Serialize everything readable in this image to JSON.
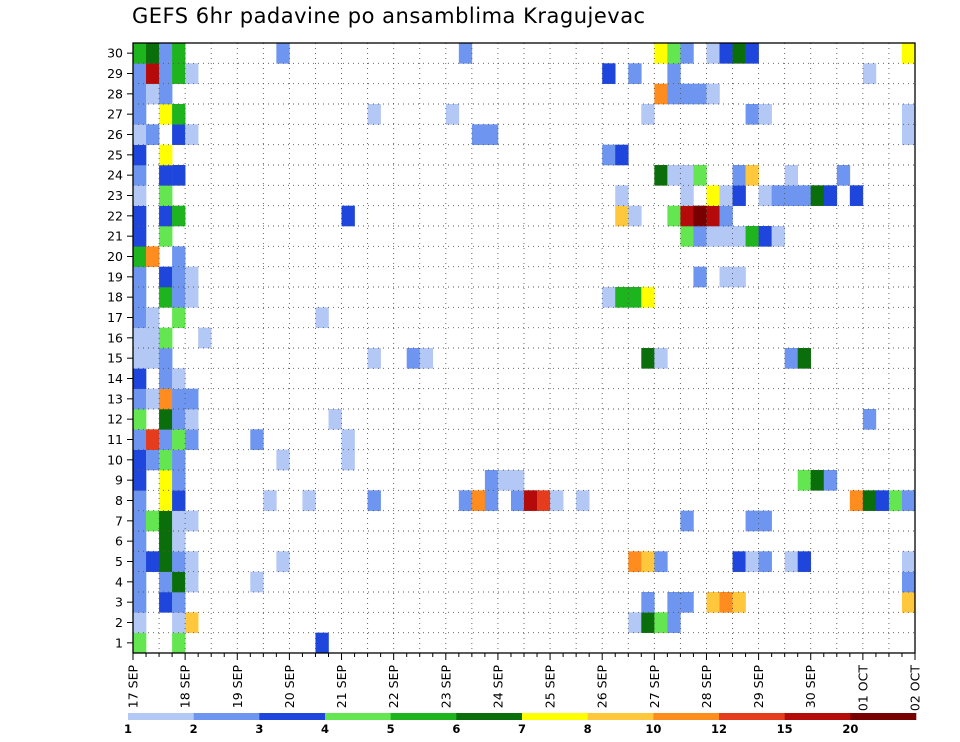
{
  "chart_data": {
    "type": "heatmap",
    "title": "GEFS 6hr padavine po ansamblima Kragujevac",
    "x_tick_labels": [
      "17 SEP",
      "18 SEP",
      "19 SEP",
      "20 SEP",
      "21 SEP",
      "22 SEP",
      "23 SEP",
      "24 SEP",
      "25 SEP",
      "26 SEP",
      "27 SEP",
      "28 SEP",
      "29 SEP",
      "30 SEP",
      "01 OCT",
      "02 OCT"
    ],
    "y_tick_labels": [
      "1",
      "2",
      "3",
      "4",
      "5",
      "6",
      "7",
      "8",
      "9",
      "10",
      "11",
      "12",
      "13",
      "14",
      "15",
      "16",
      "17",
      "18",
      "19",
      "20",
      "21",
      "22",
      "23",
      "24",
      "25",
      "26",
      "27",
      "28",
      "29",
      "30"
    ],
    "x_range_steps": [
      0,
      60
    ],
    "y_range_members": [
      0.5,
      30.5
    ],
    "steps_per_day": 4,
    "grid": "dotted",
    "legend": {
      "placement": "bottom",
      "thresholds": [
        "1",
        "2",
        "3",
        "4",
        "5",
        "6",
        "7",
        "8",
        "10",
        "12",
        "15",
        "20"
      ],
      "colors": [
        "#b4c8f5",
        "#6e96f0",
        "#1e46dc",
        "#64e650",
        "#1eb41e",
        "#0a6e0a",
        "#ffff00",
        "#ffc83c",
        "#ff8c1e",
        "#e63c1e",
        "#b40a0a",
        "#780000"
      ]
    },
    "cells": [
      [
        1,
        0,
        4
      ],
      [
        1,
        3,
        4
      ],
      [
        1,
        14,
        3
      ],
      [
        2,
        0,
        1
      ],
      [
        2,
        3,
        1
      ],
      [
        2,
        4,
        8
      ],
      [
        2,
        38,
        1
      ],
      [
        2,
        39,
        6
      ],
      [
        2,
        40,
        4
      ],
      [
        2,
        41,
        2
      ],
      [
        3,
        0,
        2
      ],
      [
        3,
        2,
        3
      ],
      [
        3,
        3,
        2
      ],
      [
        3,
        39,
        2
      ],
      [
        3,
        41,
        2
      ],
      [
        3,
        42,
        2
      ],
      [
        3,
        44,
        8
      ],
      [
        3,
        45,
        9
      ],
      [
        3,
        46,
        8
      ],
      [
        3,
        59,
        8
      ],
      [
        4,
        0,
        2
      ],
      [
        4,
        2,
        2
      ],
      [
        4,
        3,
        6
      ],
      [
        4,
        4,
        1
      ],
      [
        4,
        9,
        1
      ],
      [
        4,
        59,
        2
      ],
      [
        5,
        0,
        2
      ],
      [
        5,
        1,
        3
      ],
      [
        5,
        2,
        6
      ],
      [
        5,
        3,
        2
      ],
      [
        5,
        4,
        1
      ],
      [
        5,
        11,
        1
      ],
      [
        5,
        38,
        9
      ],
      [
        5,
        39,
        8
      ],
      [
        5,
        40,
        2
      ],
      [
        5,
        46,
        3
      ],
      [
        5,
        47,
        1
      ],
      [
        5,
        48,
        2
      ],
      [
        5,
        50,
        1
      ],
      [
        5,
        51,
        3
      ],
      [
        5,
        59,
        1
      ],
      [
        6,
        0,
        2
      ],
      [
        6,
        2,
        6
      ],
      [
        6,
        3,
        1
      ],
      [
        7,
        0,
        2
      ],
      [
        7,
        1,
        4
      ],
      [
        7,
        2,
        6
      ],
      [
        7,
        3,
        1
      ],
      [
        7,
        4,
        1
      ],
      [
        7,
        42,
        2
      ],
      [
        7,
        47,
        2
      ],
      [
        7,
        48,
        2
      ],
      [
        8,
        0,
        2
      ],
      [
        8,
        2,
        7
      ],
      [
        8,
        3,
        3
      ],
      [
        8,
        10,
        1
      ],
      [
        8,
        13,
        1
      ],
      [
        8,
        18,
        2
      ],
      [
        8,
        25,
        2
      ],
      [
        8,
        26,
        9
      ],
      [
        8,
        27,
        2
      ],
      [
        8,
        29,
        2
      ],
      [
        8,
        30,
        11
      ],
      [
        8,
        31,
        10
      ],
      [
        8,
        32,
        1
      ],
      [
        8,
        34,
        1
      ],
      [
        8,
        55,
        9
      ],
      [
        8,
        56,
        6
      ],
      [
        8,
        57,
        3
      ],
      [
        8,
        58,
        4
      ],
      [
        8,
        59,
        2
      ],
      [
        9,
        0,
        3
      ],
      [
        9,
        2,
        7
      ],
      [
        9,
        3,
        2
      ],
      [
        9,
        27,
        2
      ],
      [
        9,
        28,
        1
      ],
      [
        9,
        29,
        1
      ],
      [
        9,
        51,
        4
      ],
      [
        9,
        52,
        6
      ],
      [
        9,
        53,
        2
      ],
      [
        10,
        0,
        3
      ],
      [
        10,
        1,
        2
      ],
      [
        10,
        2,
        4
      ],
      [
        10,
        3,
        2
      ],
      [
        10,
        11,
        1
      ],
      [
        10,
        16,
        1
      ],
      [
        11,
        0,
        2
      ],
      [
        11,
        1,
        10
      ],
      [
        11,
        2,
        2
      ],
      [
        11,
        3,
        4
      ],
      [
        11,
        4,
        2
      ],
      [
        11,
        9,
        2
      ],
      [
        11,
        16,
        1
      ],
      [
        12,
        0,
        4
      ],
      [
        12,
        2,
        6
      ],
      [
        12,
        3,
        2
      ],
      [
        12,
        4,
        1
      ],
      [
        12,
        15,
        1
      ],
      [
        12,
        56,
        2
      ],
      [
        13,
        0,
        2
      ],
      [
        13,
        1,
        1
      ],
      [
        13,
        2,
        9
      ],
      [
        13,
        3,
        2
      ],
      [
        13,
        4,
        2
      ],
      [
        14,
        0,
        3
      ],
      [
        14,
        2,
        2
      ],
      [
        14,
        3,
        1
      ],
      [
        15,
        0,
        1
      ],
      [
        15,
        1,
        1
      ],
      [
        15,
        2,
        2
      ],
      [
        15,
        18,
        1
      ],
      [
        15,
        21,
        2
      ],
      [
        15,
        22,
        1
      ],
      [
        15,
        39,
        6
      ],
      [
        15,
        40,
        1
      ],
      [
        15,
        50,
        2
      ],
      [
        15,
        51,
        6
      ],
      [
        16,
        0,
        1
      ],
      [
        16,
        1,
        1
      ],
      [
        16,
        2,
        4
      ],
      [
        16,
        5,
        1
      ],
      [
        17,
        0,
        2
      ],
      [
        17,
        1,
        1
      ],
      [
        17,
        3,
        4
      ],
      [
        17,
        14,
        1
      ],
      [
        18,
        0,
        2
      ],
      [
        18,
        2,
        5
      ],
      [
        18,
        3,
        2
      ],
      [
        18,
        4,
        1
      ],
      [
        18,
        36,
        1
      ],
      [
        18,
        37,
        5
      ],
      [
        18,
        38,
        5
      ],
      [
        18,
        39,
        7
      ],
      [
        19,
        0,
        2
      ],
      [
        19,
        2,
        3
      ],
      [
        19,
        3,
        2
      ],
      [
        19,
        4,
        1
      ],
      [
        19,
        43,
        2
      ],
      [
        19,
        45,
        1
      ],
      [
        19,
        46,
        1
      ],
      [
        20,
        0,
        5
      ],
      [
        20,
        1,
        9
      ],
      [
        20,
        3,
        2
      ],
      [
        21,
        0,
        3
      ],
      [
        21,
        2,
        4
      ],
      [
        21,
        42,
        4
      ],
      [
        21,
        43,
        2
      ],
      [
        21,
        44,
        1
      ],
      [
        21,
        45,
        1
      ],
      [
        21,
        46,
        1
      ],
      [
        21,
        47,
        5
      ],
      [
        21,
        48,
        3
      ],
      [
        21,
        49,
        1
      ],
      [
        22,
        0,
        3
      ],
      [
        22,
        2,
        3
      ],
      [
        22,
        3,
        5
      ],
      [
        22,
        16,
        3
      ],
      [
        22,
        37,
        8
      ],
      [
        22,
        38,
        1
      ],
      [
        22,
        41,
        4
      ],
      [
        22,
        42,
        11
      ],
      [
        22,
        43,
        12
      ],
      [
        22,
        44,
        11
      ],
      [
        22,
        45,
        2
      ],
      [
        23,
        0,
        1
      ],
      [
        23,
        2,
        4
      ],
      [
        23,
        37,
        1
      ],
      [
        23,
        42,
        1
      ],
      [
        23,
        44,
        7
      ],
      [
        23,
        45,
        1
      ],
      [
        23,
        46,
        3
      ],
      [
        23,
        48,
        1
      ],
      [
        23,
        49,
        2
      ],
      [
        23,
        50,
        2
      ],
      [
        23,
        51,
        2
      ],
      [
        23,
        52,
        6
      ],
      [
        23,
        53,
        3
      ],
      [
        23,
        55,
        3
      ],
      [
        24,
        0,
        2
      ],
      [
        24,
        2,
        3
      ],
      [
        24,
        3,
        3
      ],
      [
        24,
        40,
        6
      ],
      [
        24,
        41,
        1
      ],
      [
        24,
        42,
        1
      ],
      [
        24,
        43,
        4
      ],
      [
        24,
        46,
        2
      ],
      [
        24,
        47,
        8
      ],
      [
        24,
        50,
        1
      ],
      [
        24,
        54,
        2
      ],
      [
        25,
        0,
        3
      ],
      [
        25,
        2,
        7
      ],
      [
        25,
        36,
        2
      ],
      [
        25,
        37,
        3
      ],
      [
        26,
        0,
        1
      ],
      [
        26,
        1,
        2
      ],
      [
        26,
        3,
        3
      ],
      [
        26,
        4,
        1
      ],
      [
        26,
        26,
        2
      ],
      [
        26,
        27,
        2
      ],
      [
        26,
        59,
        1
      ],
      [
        27,
        0,
        2
      ],
      [
        27,
        2,
        7
      ],
      [
        27,
        3,
        5
      ],
      [
        27,
        18,
        1
      ],
      [
        27,
        24,
        1
      ],
      [
        27,
        39,
        1
      ],
      [
        27,
        47,
        2
      ],
      [
        27,
        48,
        1
      ],
      [
        27,
        59,
        1
      ],
      [
        28,
        0,
        2
      ],
      [
        28,
        1,
        1
      ],
      [
        28,
        2,
        2
      ],
      [
        28,
        40,
        9
      ],
      [
        28,
        41,
        2
      ],
      [
        28,
        42,
        2
      ],
      [
        28,
        43,
        2
      ],
      [
        28,
        44,
        1
      ],
      [
        29,
        0,
        2
      ],
      [
        29,
        1,
        11
      ],
      [
        29,
        2,
        2
      ],
      [
        29,
        3,
        5
      ],
      [
        29,
        4,
        1
      ],
      [
        29,
        36,
        3
      ],
      [
        29,
        38,
        2
      ],
      [
        29,
        41,
        2
      ],
      [
        29,
        56,
        1
      ],
      [
        30,
        0,
        5
      ],
      [
        30,
        1,
        6
      ],
      [
        30,
        2,
        2
      ],
      [
        30,
        3,
        5
      ],
      [
        30,
        11,
        2
      ],
      [
        30,
        25,
        2
      ],
      [
        30,
        40,
        7
      ],
      [
        30,
        41,
        4
      ],
      [
        30,
        42,
        2
      ],
      [
        30,
        44,
        1
      ],
      [
        30,
        45,
        3
      ],
      [
        30,
        46,
        6
      ],
      [
        30,
        47,
        3
      ],
      [
        30,
        59,
        7
      ]
    ]
  }
}
